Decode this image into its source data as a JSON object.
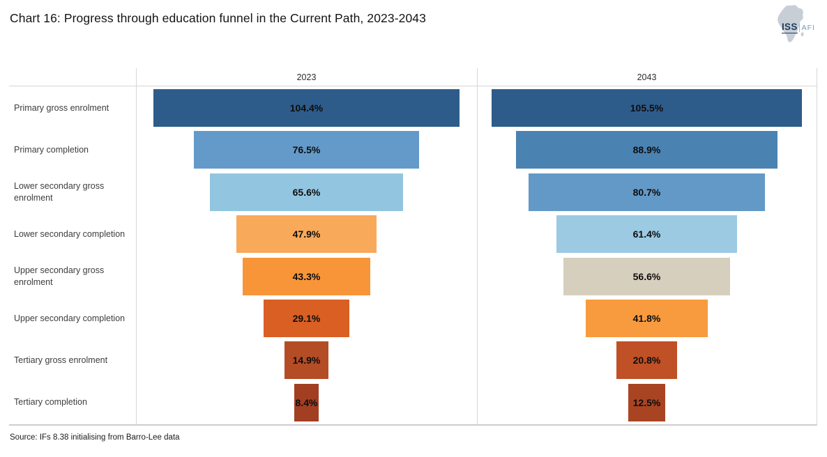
{
  "title": "Chart 16: Progress through education funnel in the Current Path, 2023-2043",
  "source": "Source: IFs 8.38 initialising from Barro-Lee data",
  "logo": {
    "iss": "ISS",
    "afi": "AFI",
    "africa_color": "#C7CED6",
    "iss_color": "#1E3A5F",
    "afi_color": "#6E9BC2"
  },
  "chart_data": {
    "type": "bar",
    "subtype": "centered-funnel",
    "title": "Chart 16: Progress through education funnel in the Current Path, 2023-2043",
    "legend": "none",
    "grid": "panel dividers, header rule and bottom rule only",
    "value_axis_max_pct": 116,
    "categories": [
      "Primary gross enrolment",
      "Primary completion",
      "Lower secondary gross enrolment",
      "Lower secondary completion",
      "Upper secondary gross enrolment",
      "Upper secondary completion",
      "Tertiary gross enrolment",
      "Tertiary completion"
    ],
    "series": [
      {
        "name": "2023",
        "values": [
          104.4,
          76.5,
          65.6,
          47.9,
          43.3,
          29.1,
          14.9,
          8.4
        ],
        "labels": [
          "104.4%",
          "76.5%",
          "65.6%",
          "47.9%",
          "43.3%",
          "29.1%",
          "14.9%",
          "8.4%"
        ],
        "colors": [
          "#2E5C8A",
          "#639AC9",
          "#92C5E0",
          "#F9A95A",
          "#F79538",
          "#D95F23",
          "#B44C26",
          "#A23E22"
        ]
      },
      {
        "name": "2043",
        "values": [
          105.5,
          88.9,
          80.7,
          61.4,
          56.6,
          41.8,
          20.8,
          12.5
        ],
        "labels": [
          "105.5%",
          "88.9%",
          "80.7%",
          "61.4%",
          "56.6%",
          "41.8%",
          "20.8%",
          "12.5%"
        ],
        "colors": [
          "#2E5C8A",
          "#4A82B2",
          "#6299C7",
          "#9CCAE3",
          "#D7CFBE",
          "#F89B3E",
          "#C05026",
          "#A94423"
        ]
      }
    ]
  }
}
